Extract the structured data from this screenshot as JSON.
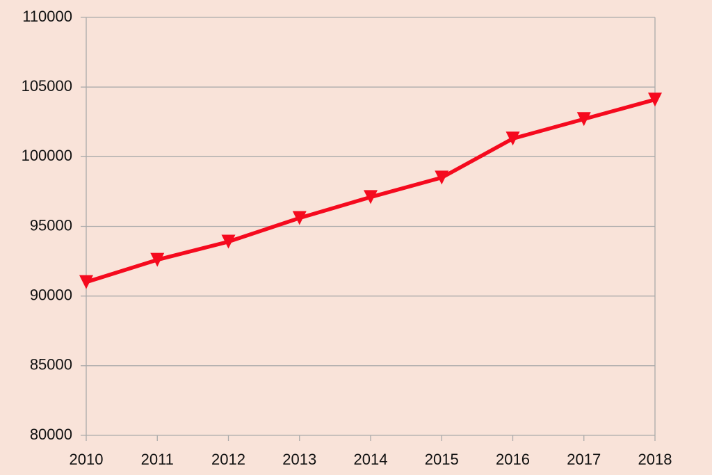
{
  "chart_data": {
    "type": "line",
    "categories": [
      "2010",
      "2011",
      "2012",
      "2013",
      "2014",
      "2015",
      "2016",
      "2017",
      "2018"
    ],
    "values": [
      91000,
      92600,
      93900,
      95600,
      97100,
      98500,
      101300,
      102700,
      104100
    ],
    "color": "#f50a1e",
    "ylim": [
      80000,
      110000
    ],
    "yticks": [
      80000,
      85000,
      90000,
      95000,
      100000,
      105000,
      110000
    ],
    "grid": true
  }
}
